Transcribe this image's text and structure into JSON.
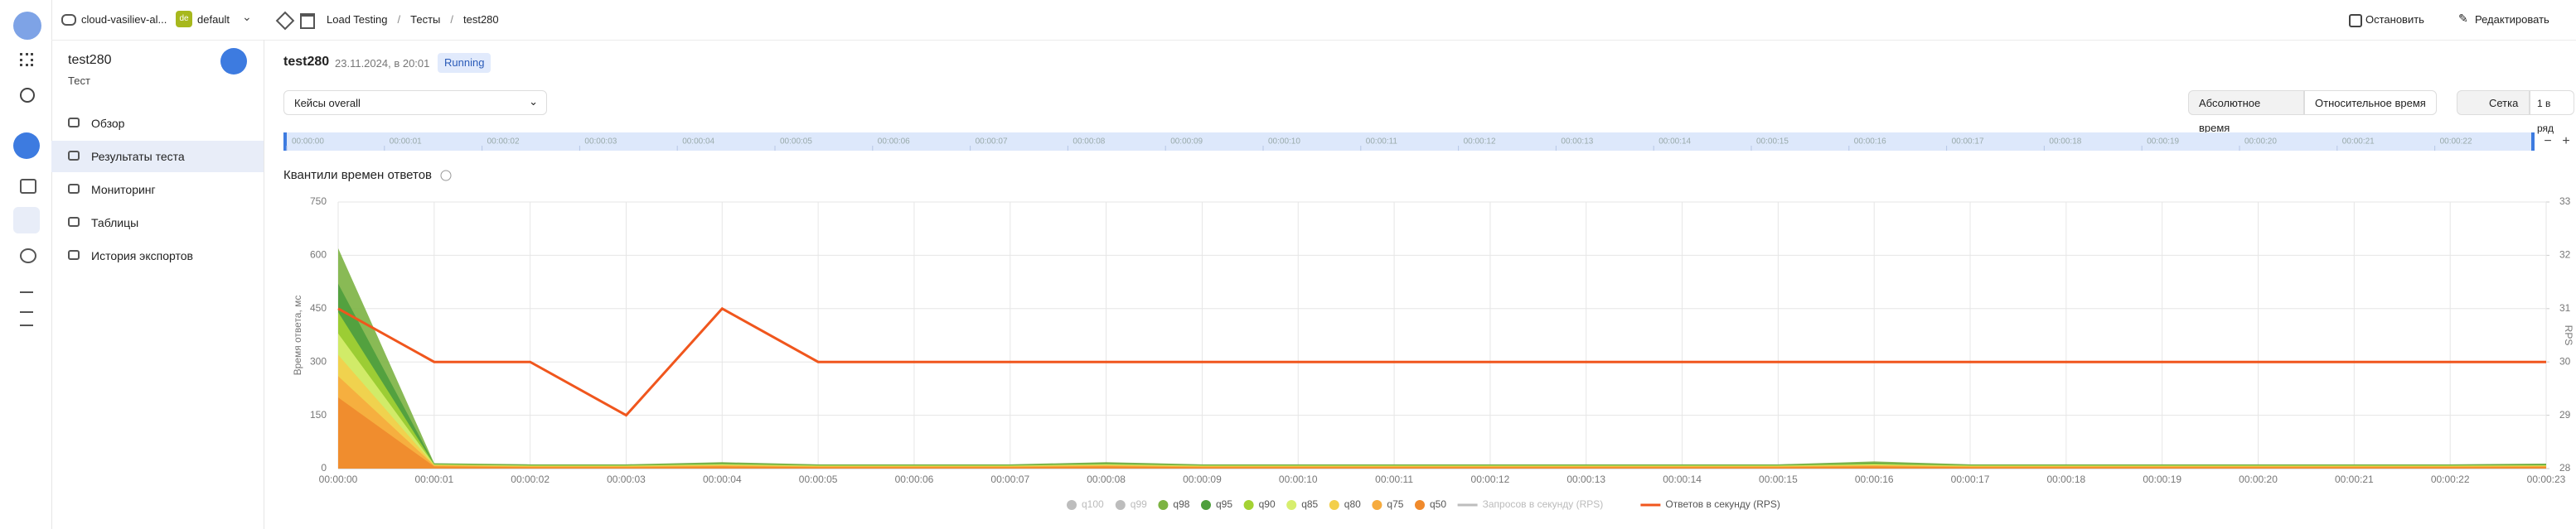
{
  "header": {
    "project": "cloud-vasiliev-al...",
    "folder_badge": "de",
    "folder": "default",
    "breadcrumbs": [
      "Load Testing",
      "Тесты",
      "test280"
    ],
    "actions": [
      "Остановить",
      "Редактировать"
    ]
  },
  "sidebar": {
    "title": "test280",
    "subtitle": "Тест",
    "menu": [
      "Обзор",
      "Результаты теста",
      "Мониторинг",
      "Таблицы",
      "История экспортов"
    ],
    "selected": 1
  },
  "page": {
    "title": "test280",
    "date": "23.11.2024, в 20:01",
    "status": "Running",
    "cases_label": "Кейсы",
    "cases_value": "overall",
    "time_modes": [
      "Абсолютное время",
      "Относительное время"
    ],
    "view_buttons": [
      "Сетка",
      "1 в ряд"
    ]
  },
  "chart_data": {
    "type": "area",
    "title": "Квантили времен ответов",
    "ylabel": "Время ответа, мс",
    "y2label": "RPS",
    "categories": [
      "00:00:00",
      "00:00:01",
      "00:00:02",
      "00:00:03",
      "00:00:04",
      "00:00:05",
      "00:00:06",
      "00:00:07",
      "00:00:08",
      "00:00:09",
      "00:00:10",
      "00:00:11",
      "00:00:12",
      "00:00:13",
      "00:00:14",
      "00:00:15",
      "00:00:16",
      "00:00:17",
      "00:00:18",
      "00:00:19",
      "00:00:20",
      "00:00:21",
      "00:00:22",
      "00:00:23"
    ],
    "ylim": [
      0,
      750
    ],
    "yticks": [
      0,
      150,
      300,
      450,
      600,
      750
    ],
    "y2lim": [
      28,
      33
    ],
    "y2ticks": [
      28,
      29,
      30,
      31,
      32,
      33
    ],
    "grid": true,
    "series": [
      {
        "name": "q100",
        "color": "#b4b4b4",
        "hidden": true
      },
      {
        "name": "q99",
        "color": "#b4b4b4",
        "hidden": true
      },
      {
        "name": "q98",
        "color": "#7cb342",
        "values": [
          620,
          15,
          12,
          12,
          18,
          12,
          12,
          12,
          18,
          12,
          12,
          12,
          12,
          12,
          12,
          12,
          20,
          12,
          12,
          12,
          12,
          12,
          12,
          14
        ]
      },
      {
        "name": "q95",
        "color": "#4e9f3d",
        "values": [
          520,
          13,
          10,
          10,
          15,
          10,
          10,
          10,
          15,
          10,
          10,
          10,
          10,
          10,
          10,
          10,
          16,
          10,
          10,
          10,
          10,
          10,
          10,
          12
        ]
      },
      {
        "name": "q90",
        "color": "#a4d233",
        "values": [
          440,
          12,
          9,
          9,
          13,
          9,
          9,
          9,
          13,
          9,
          9,
          9,
          9,
          9,
          9,
          9,
          14,
          9,
          9,
          9,
          9,
          9,
          9,
          10
        ]
      },
      {
        "name": "q85",
        "color": "#d7ee6e",
        "values": [
          380,
          11,
          8,
          8,
          12,
          8,
          8,
          8,
          12,
          8,
          8,
          8,
          8,
          8,
          8,
          8,
          12,
          8,
          8,
          8,
          8,
          8,
          8,
          9
        ]
      },
      {
        "name": "q80",
        "color": "#f3cf4b",
        "values": [
          320,
          10,
          7,
          7,
          10,
          7,
          7,
          7,
          10,
          7,
          7,
          7,
          7,
          7,
          7,
          7,
          10,
          7,
          7,
          7,
          7,
          7,
          7,
          8
        ]
      },
      {
        "name": "q75",
        "color": "#f6ab3e",
        "values": [
          260,
          9,
          6,
          6,
          9,
          6,
          6,
          6,
          9,
          6,
          6,
          6,
          6,
          6,
          6,
          6,
          9,
          6,
          6,
          6,
          6,
          6,
          6,
          7
        ]
      },
      {
        "name": "q50",
        "color": "#f08a2c",
        "values": [
          200,
          6,
          4,
          4,
          6,
          4,
          4,
          4,
          6,
          4,
          4,
          4,
          4,
          4,
          4,
          4,
          6,
          4,
          4,
          4,
          4,
          4,
          4,
          5
        ]
      },
      {
        "name": "Запросов в секунду (RPS)",
        "color": "#b4b4b4",
        "hidden": true,
        "kind": "line",
        "axis": "y2"
      },
      {
        "name": "Ответов в секунду (RPS)",
        "color": "#f0561d",
        "kind": "line",
        "axis": "y2",
        "values": [
          31,
          30,
          30,
          29,
          31,
          30,
          30,
          30,
          30,
          30,
          30,
          30,
          30,
          30,
          30,
          30,
          30,
          30,
          30,
          30,
          30,
          30,
          30,
          30
        ]
      }
    ]
  }
}
